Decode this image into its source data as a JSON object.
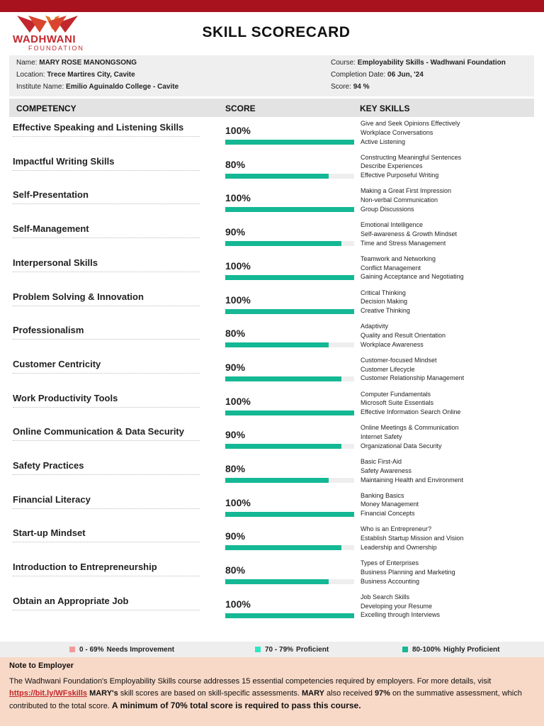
{
  "brand": {
    "name": "WADHWANI",
    "sub": "FOUNDATION",
    "colors": {
      "topbar": "#a8111e",
      "logo": "#c1272d",
      "bar": "#14b894",
      "bar_track": "#eeeeee",
      "note_bg": "#f8d9c7"
    }
  },
  "title": "SKILL SCORECARD",
  "info": {
    "name_label": "Name:",
    "name": "MARY ROSE MANONGSONG",
    "location_label": "Location:",
    "location": "Trece Martires City, Cavite",
    "institute_label": "Institute Name:",
    "institute": "Emilio Aguinaldo College - Cavite",
    "course_label": "Course:",
    "course": "Employability Skills - Wadhwani Foundation",
    "completion_label": "Completion Date:",
    "completion": "06 Jun, '24",
    "score_label": "Score:",
    "score": "94 %"
  },
  "table": {
    "headers": {
      "competency": "COMPETENCY",
      "score": "SCORE",
      "skills": "KEY SKILLS"
    },
    "rows": [
      {
        "competency": "Effective Speaking and Listening Skills",
        "score": "100%",
        "pct": 100,
        "skills": [
          "Give and Seek Opinions Effectively",
          "Workplace Conversations",
          "Active Listening"
        ]
      },
      {
        "competency": "Impactful Writing Skills",
        "score": "80%",
        "pct": 80,
        "skills": [
          "Constructing Meaningful Sentences",
          "Describe Experiences",
          "Effective Purposeful Writing"
        ]
      },
      {
        "competency": "Self-Presentation",
        "score": "100%",
        "pct": 100,
        "skills": [
          "Making a Great First Impression",
          "Non-verbal Communication",
          "Group Discussions"
        ]
      },
      {
        "competency": "Self-Management",
        "score": "90%",
        "pct": 90,
        "skills": [
          "Emotional Intelligence",
          "Self-awareness & Growth Mindset",
          "Time and Stress Management"
        ]
      },
      {
        "competency": "Interpersonal Skills",
        "score": "100%",
        "pct": 100,
        "skills": [
          "Teamwork and Networking",
          "Conflict Management",
          "Gaining Acceptance and Negotiating"
        ]
      },
      {
        "competency": "Problem Solving & Innovation",
        "score": "100%",
        "pct": 100,
        "skills": [
          "Critical Thinking",
          "Decision Making",
          "Creative Thinking"
        ]
      },
      {
        "competency": "Professionalism",
        "score": "80%",
        "pct": 80,
        "skills": [
          "Adaptivity",
          "Quality and Result Orientation",
          "Workplace Awareness"
        ]
      },
      {
        "competency": "Customer Centricity",
        "score": "90%",
        "pct": 90,
        "skills": [
          "Customer-focused Mindset",
          "Customer Lifecycle",
          "Customer Relationship Management"
        ]
      },
      {
        "competency": "Work Productivity Tools",
        "score": "100%",
        "pct": 100,
        "skills": [
          "Computer Fundamentals",
          "Microsoft Suite Essentials",
          "Effective Information Search Online"
        ]
      },
      {
        "competency": "Online Communication & Data Security",
        "score": "90%",
        "pct": 90,
        "skills": [
          "Online Meetings & Communication",
          "Internet Safety",
          "Organizational Data Security"
        ]
      },
      {
        "competency": "Safety Practices",
        "score": "80%",
        "pct": 80,
        "skills": [
          "Basic First-Aid",
          "Safety Awareness",
          "Maintaining Health and Environment"
        ]
      },
      {
        "competency": "Financial Literacy",
        "score": "100%",
        "pct": 100,
        "skills": [
          "Banking Basics",
          "Money Management",
          "Financial Concepts"
        ]
      },
      {
        "competency": "Start-up Mindset",
        "score": "90%",
        "pct": 90,
        "skills": [
          "Who is an Entrepreneur?",
          "Establish Startup Mission and Vision",
          "Leadership and Ownership"
        ]
      },
      {
        "competency": "Introduction to Entrepreneurship",
        "score": "80%",
        "pct": 80,
        "skills": [
          "Types of Enterprises",
          "Business Planning and Marketing",
          "Business Accounting"
        ]
      },
      {
        "competency": "Obtain an Appropriate Job",
        "score": "100%",
        "pct": 100,
        "skills": [
          "Job Search Skills",
          "Developing your Resume",
          "Excelling through Interviews"
        ]
      }
    ]
  },
  "legend": [
    {
      "range": "0 - 69%",
      "label": "Needs Improvement",
      "color": "#f29a9a"
    },
    {
      "range": "70 - 79%",
      "label": "Proficient",
      "color": "#2ee6c4"
    },
    {
      "range": "80-100%",
      "label": "Highly Proficient",
      "color": "#14b894"
    }
  ],
  "note": {
    "title": "Note to Employer",
    "p1": "The Wadhwani Foundation's Employability Skills course addresses 15 essential competencies required by employers. For more details, visit ",
    "link": "https://bit.ly/WFskills",
    "p2_name": "MARY's",
    "p2": " skill scores are based on skill-specific assessments. ",
    "p3_name": "MARY",
    "p3": " also received ",
    "p3_pct": "97%",
    "p4": " on the summative assessment, which contributed to the total score.  ",
    "p5": "A minimum of 70% total score is required to pass this course."
  }
}
